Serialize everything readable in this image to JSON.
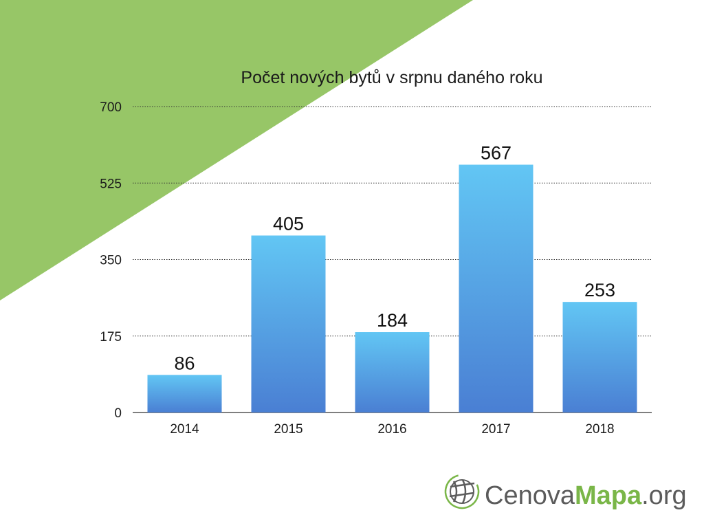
{
  "colors": {
    "background": "#ffffff",
    "accent_triangle": "#97c667",
    "bar_top": "#62c6f4",
    "bar_bottom": "#4a7fd3",
    "gridline": "#333333",
    "logo_gray": "#5b5b5b",
    "logo_green": "#7ab648"
  },
  "chart_data": {
    "type": "bar",
    "title": "Počet nových bytů v srpnu daného roku",
    "xlabel": "",
    "ylabel": "",
    "categories": [
      "2014",
      "2015",
      "2016",
      "2017",
      "2018"
    ],
    "values": [
      86,
      405,
      184,
      567,
      253
    ],
    "value_labels": [
      "86",
      "405",
      "184",
      "567",
      "253"
    ],
    "ylim": [
      0,
      700
    ],
    "yticks": [
      0,
      175,
      350,
      525,
      700
    ],
    "ytick_labels": [
      "0",
      "175",
      "350",
      "525",
      "700"
    ],
    "grid": true,
    "grid_style": "dotted",
    "legend": "none"
  },
  "logo": {
    "icon": "globe-icon",
    "part1": "Cenova",
    "part2": "Mapa",
    "part3": ".org"
  }
}
